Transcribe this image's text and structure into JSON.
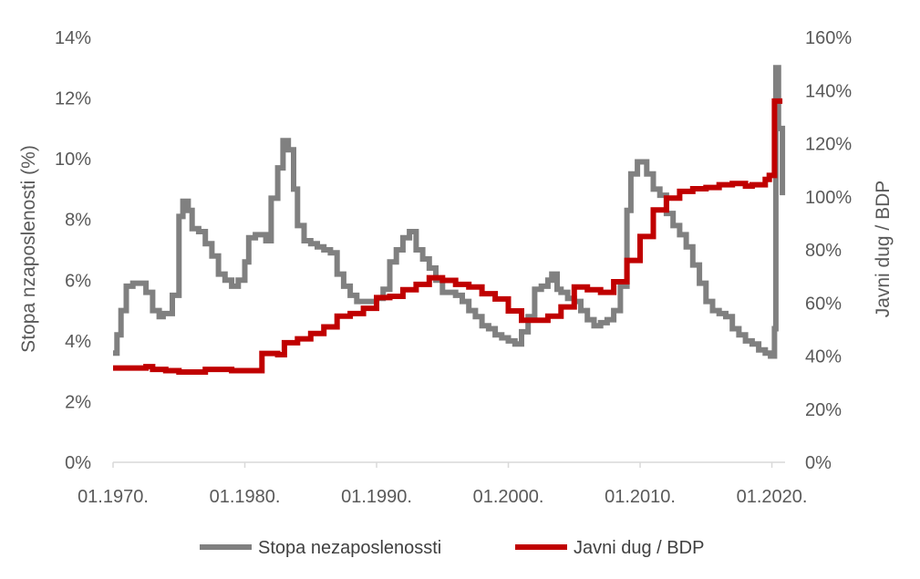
{
  "chart_data": {
    "type": "line",
    "title": "",
    "y_left": {
      "label": "Stopa nzaposlenosti (%)",
      "range": [
        0,
        14
      ],
      "ticks": [
        0,
        2,
        4,
        6,
        8,
        10,
        12,
        14
      ],
      "tick_labels": [
        "0%",
        "2%",
        "4%",
        "6%",
        "8%",
        "10%",
        "12%",
        "14%"
      ]
    },
    "y_right": {
      "label": "Javni dug / BDP",
      "range": [
        0,
        160
      ],
      "ticks": [
        0,
        20,
        40,
        60,
        80,
        100,
        120,
        140,
        160
      ],
      "tick_labels": [
        "0%",
        "20%",
        "40%",
        "60%",
        "80%",
        "100%",
        "120%",
        "140%",
        "160%"
      ]
    },
    "x_axis": {
      "range": [
        1970,
        2021
      ],
      "ticks": [
        1970,
        1980,
        1990,
        2000,
        2010,
        2020
      ],
      "tick_labels": [
        "01.1970.",
        "01.1980.",
        "01.1990.",
        "01.2000.",
        "01.2010.",
        "01.2020."
      ]
    },
    "grid": false,
    "legend_position": "bottom",
    "series": [
      {
        "name": "Stopa nezaposlenossti",
        "axis": "left",
        "color": "#808080",
        "points": [
          [
            1970.0,
            3.6
          ],
          [
            1970.3,
            4.2
          ],
          [
            1970.6,
            5.0
          ],
          [
            1971.0,
            5.8
          ],
          [
            1971.5,
            5.9
          ],
          [
            1972.0,
            5.9
          ],
          [
            1972.5,
            5.6
          ],
          [
            1973.0,
            5.0
          ],
          [
            1973.5,
            4.8
          ],
          [
            1973.8,
            4.9
          ],
          [
            1974.5,
            5.5
          ],
          [
            1975.0,
            8.1
          ],
          [
            1975.3,
            8.6
          ],
          [
            1975.7,
            8.3
          ],
          [
            1976.0,
            7.7
          ],
          [
            1976.5,
            7.6
          ],
          [
            1977.0,
            7.2
          ],
          [
            1977.5,
            6.8
          ],
          [
            1978.0,
            6.2
          ],
          [
            1978.5,
            6.0
          ],
          [
            1979.0,
            5.8
          ],
          [
            1979.5,
            6.0
          ],
          [
            1980.0,
            6.6
          ],
          [
            1980.3,
            7.4
          ],
          [
            1980.8,
            7.5
          ],
          [
            1981.3,
            7.5
          ],
          [
            1981.6,
            7.3
          ],
          [
            1982.0,
            8.7
          ],
          [
            1982.5,
            9.7
          ],
          [
            1982.9,
            10.6
          ],
          [
            1983.3,
            10.3
          ],
          [
            1983.7,
            9.0
          ],
          [
            1984.0,
            7.8
          ],
          [
            1984.5,
            7.3
          ],
          [
            1985.0,
            7.2
          ],
          [
            1985.5,
            7.1
          ],
          [
            1986.0,
            7.0
          ],
          [
            1986.5,
            6.9
          ],
          [
            1987.0,
            6.2
          ],
          [
            1987.5,
            5.8
          ],
          [
            1988.0,
            5.5
          ],
          [
            1988.5,
            5.3
          ],
          [
            1989.0,
            5.3
          ],
          [
            1989.5,
            5.3
          ],
          [
            1990.0,
            5.4
          ],
          [
            1990.5,
            5.7
          ],
          [
            1991.0,
            6.6
          ],
          [
            1991.5,
            7.0
          ],
          [
            1992.0,
            7.4
          ],
          [
            1992.5,
            7.6
          ],
          [
            1993.0,
            7.0
          ],
          [
            1993.5,
            6.7
          ],
          [
            1994.0,
            6.4
          ],
          [
            1994.5,
            6.0
          ],
          [
            1995.0,
            5.6
          ],
          [
            1995.5,
            5.6
          ],
          [
            1996.0,
            5.5
          ],
          [
            1996.5,
            5.3
          ],
          [
            1997.0,
            5.0
          ],
          [
            1997.5,
            4.8
          ],
          [
            1998.0,
            4.5
          ],
          [
            1998.5,
            4.4
          ],
          [
            1999.0,
            4.2
          ],
          [
            1999.5,
            4.1
          ],
          [
            2000.0,
            4.0
          ],
          [
            2000.5,
            3.9
          ],
          [
            2001.0,
            4.3
          ],
          [
            2001.5,
            4.8
          ],
          [
            2002.0,
            5.7
          ],
          [
            2002.5,
            5.8
          ],
          [
            2003.0,
            6.0
          ],
          [
            2003.3,
            6.2
          ],
          [
            2003.7,
            5.7
          ],
          [
            2004.0,
            5.6
          ],
          [
            2004.5,
            5.4
          ],
          [
            2005.0,
            5.3
          ],
          [
            2005.5,
            5.0
          ],
          [
            2006.0,
            4.7
          ],
          [
            2006.5,
            4.5
          ],
          [
            2007.0,
            4.6
          ],
          [
            2007.5,
            4.7
          ],
          [
            2008.0,
            5.0
          ],
          [
            2008.5,
            5.8
          ],
          [
            2009.0,
            8.3
          ],
          [
            2009.3,
            9.5
          ],
          [
            2009.8,
            9.9
          ],
          [
            2010.5,
            9.5
          ],
          [
            2011.0,
            9.0
          ],
          [
            2011.5,
            8.8
          ],
          [
            2012.0,
            8.2
          ],
          [
            2012.5,
            7.8
          ],
          [
            2013.0,
            7.5
          ],
          [
            2013.5,
            7.1
          ],
          [
            2014.0,
            6.5
          ],
          [
            2014.5,
            5.9
          ],
          [
            2015.0,
            5.3
          ],
          [
            2015.5,
            5.0
          ],
          [
            2016.0,
            4.9
          ],
          [
            2016.5,
            4.8
          ],
          [
            2017.0,
            4.4
          ],
          [
            2017.5,
            4.2
          ],
          [
            2018.0,
            4.0
          ],
          [
            2018.5,
            3.9
          ],
          [
            2019.0,
            3.7
          ],
          [
            2019.5,
            3.6
          ],
          [
            2019.9,
            3.5
          ],
          [
            2020.2,
            4.4
          ],
          [
            2020.3,
            13.0
          ],
          [
            2020.5,
            11.0
          ],
          [
            2020.8,
            8.8
          ]
        ]
      },
      {
        "name": "Javni dug / BDP",
        "axis": "right",
        "color": "#C00000",
        "points": [
          [
            1970.0,
            35.5
          ],
          [
            1972.0,
            35.5
          ],
          [
            1972.5,
            36.0
          ],
          [
            1973.0,
            35.0
          ],
          [
            1974.0,
            34.5
          ],
          [
            1975.0,
            34.0
          ],
          [
            1976.0,
            34.0
          ],
          [
            1977.0,
            35.0
          ],
          [
            1979.0,
            34.5
          ],
          [
            1981.0,
            34.5
          ],
          [
            1981.3,
            41.0
          ],
          [
            1982.5,
            40.5
          ],
          [
            1983.0,
            45.0
          ],
          [
            1984.0,
            46.5
          ],
          [
            1985.0,
            48.5
          ],
          [
            1986.0,
            51.0
          ],
          [
            1987.0,
            55.0
          ],
          [
            1988.0,
            56.0
          ],
          [
            1989.0,
            58.0
          ],
          [
            1990.0,
            62.0
          ],
          [
            1991.0,
            62.5
          ],
          [
            1992.0,
            65.0
          ],
          [
            1993.0,
            67.0
          ],
          [
            1994.0,
            69.5
          ],
          [
            1995.0,
            68.5
          ],
          [
            1996.0,
            67.0
          ],
          [
            1997.0,
            66.0
          ],
          [
            1998.0,
            63.5
          ],
          [
            1999.0,
            61.5
          ],
          [
            2000.0,
            57.0
          ],
          [
            2001.0,
            53.5
          ],
          [
            2002.0,
            53.5
          ],
          [
            2003.0,
            55.0
          ],
          [
            2004.0,
            58.5
          ],
          [
            2005.0,
            66.0
          ],
          [
            2006.0,
            65.0
          ],
          [
            2007.0,
            64.0
          ],
          [
            2008.0,
            68.0
          ],
          [
            2009.0,
            76.0
          ],
          [
            2010.0,
            85.0
          ],
          [
            2011.0,
            95.0
          ],
          [
            2012.0,
            99.5
          ],
          [
            2013.0,
            102.0
          ],
          [
            2014.0,
            103.0
          ],
          [
            2015.0,
            103.5
          ],
          [
            2016.0,
            104.5
          ],
          [
            2017.0,
            105.0
          ],
          [
            2018.0,
            104.0
          ],
          [
            2018.5,
            104.5
          ],
          [
            2019.0,
            104.5
          ],
          [
            2019.5,
            106.5
          ],
          [
            2019.8,
            108.0
          ],
          [
            2020.2,
            136.0
          ],
          [
            2020.8,
            136.0
          ]
        ]
      }
    ]
  }
}
